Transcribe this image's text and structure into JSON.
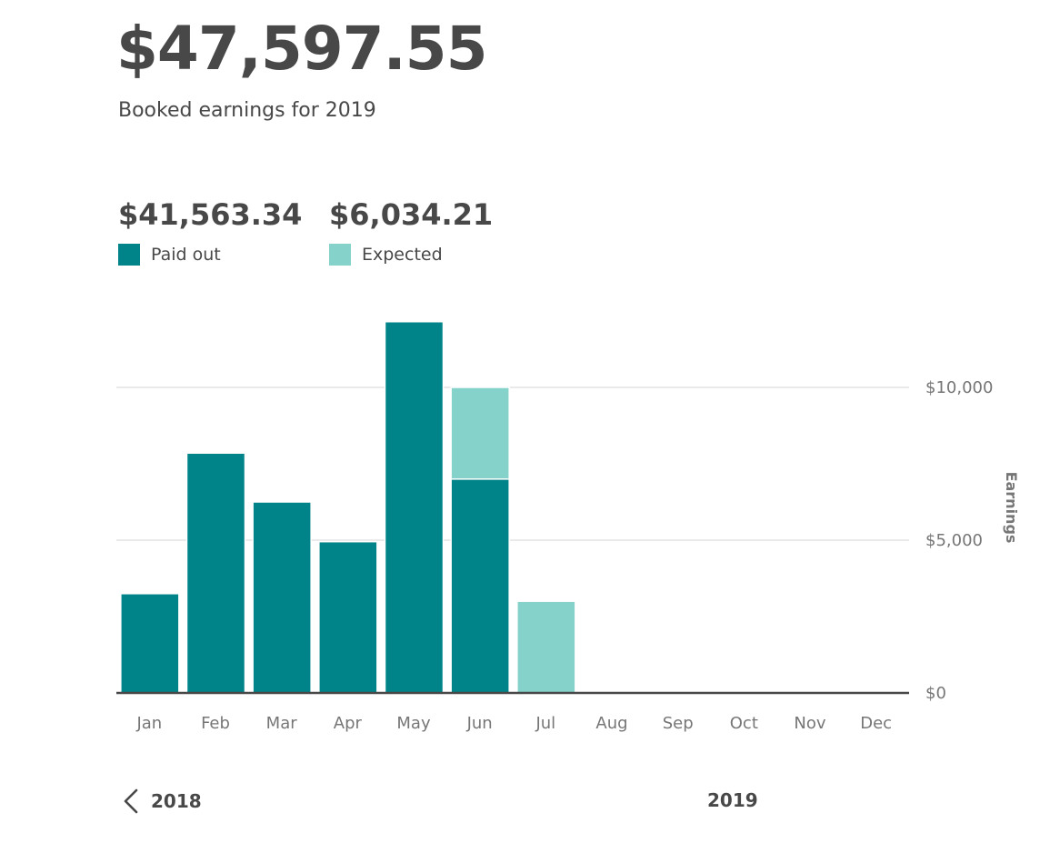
{
  "header": {
    "total": "$47,597.55",
    "subtitle": "Booked earnings for 2019"
  },
  "summary": {
    "paid": {
      "amount": "$41,563.34",
      "label": "Paid out",
      "color": "#008489"
    },
    "expected": {
      "amount": "$6,034.21",
      "label": "Expected",
      "color": "#84d2c9"
    }
  },
  "chart_data": {
    "type": "bar",
    "stacked": true,
    "categories": [
      "Jan",
      "Feb",
      "Mar",
      "Apr",
      "May",
      "Jun",
      "Jul",
      "Aug",
      "Sep",
      "Oct",
      "Nov",
      "Dec"
    ],
    "series": [
      {
        "name": "Paid out",
        "color": "#008489",
        "values": [
          3250,
          7850,
          6250,
          4950,
          12150,
          7000,
          0,
          0,
          0,
          0,
          0,
          0
        ]
      },
      {
        "name": "Expected",
        "color": "#84d2c9",
        "values": [
          0,
          0,
          0,
          0,
          0,
          3000,
          3000,
          0,
          0,
          0,
          0,
          0
        ]
      }
    ],
    "ylabel": "Earnings",
    "yticks": [
      {
        "value": 0,
        "label": "$0"
      },
      {
        "value": 5000,
        "label": "$5,000"
      },
      {
        "value": 10000,
        "label": "$10,000"
      }
    ],
    "ylim": [
      0,
      12150
    ],
    "y_axis_position": "right",
    "grid": true
  },
  "navigation": {
    "previous_year": "2018",
    "current_year": "2019"
  }
}
